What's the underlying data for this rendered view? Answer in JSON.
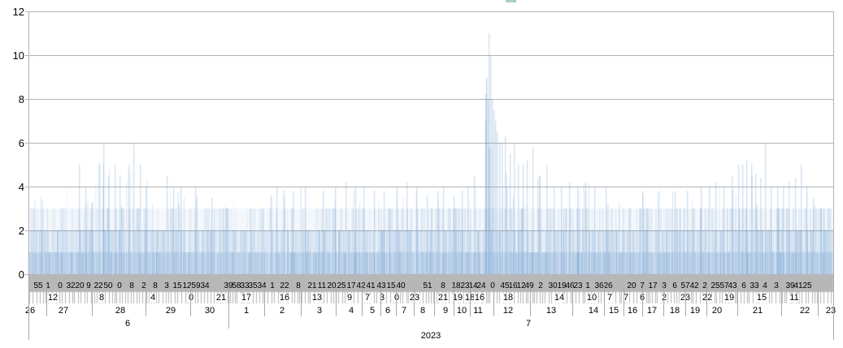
{
  "window": {
    "background": "#ffffff"
  },
  "artifact_mark": {
    "label": "clipped-teal-mark",
    "color": "#a5cfc3",
    "x": 622,
    "width": 13,
    "height": 3
  },
  "chart_data": {
    "type": "bar",
    "title": "",
    "xlabel": "",
    "ylabel": "",
    "legend": null,
    "grid": true,
    "ylim": [
      0,
      12
    ],
    "yticks": [
      0,
      2,
      4,
      6,
      8,
      10,
      12
    ],
    "ytick_labels": [
      "0",
      "2",
      "4",
      "6",
      "8",
      "10",
      "12"
    ],
    "x_axis_type": "datetime-hierarchy",
    "date_range": "2023-06-26 to 2023-07-23",
    "series_description": "Event counts per minute-level timestamp rendered as thousands of thin translucent blue bars; typical values 1-3, occasional 4-6, large spike reaching 11 around 2023-07-11/12",
    "peak": {
      "value": 11,
      "x": 601,
      "at": "2023-07-11"
    },
    "x_hierarchy": {
      "minutes": [
        [
          "55",
          47
        ],
        [
          "1",
          59
        ],
        [
          "0",
          74
        ],
        [
          "32",
          87
        ],
        [
          "20",
          98
        ],
        [
          "9",
          109
        ],
        [
          "22",
          121
        ],
        [
          "50",
          133
        ],
        [
          "0",
          147
        ],
        [
          "8",
          162
        ],
        [
          "2",
          177
        ],
        [
          "8",
          191
        ],
        [
          "3",
          205
        ],
        [
          "15",
          218
        ],
        [
          "12",
          230
        ],
        [
          "59",
          241
        ],
        [
          "34",
          252
        ],
        [
          "39",
          281
        ],
        [
          "58",
          291
        ],
        [
          "33",
          301
        ],
        [
          "35",
          311
        ],
        [
          "34",
          322
        ],
        [
          "1",
          335
        ],
        [
          "22",
          350
        ],
        [
          "8",
          367
        ],
        [
          "21",
          384
        ],
        [
          "11",
          396
        ],
        [
          "20",
          408
        ],
        [
          "25",
          420
        ],
        [
          "17",
          432
        ],
        [
          "42",
          444
        ],
        [
          "41",
          456
        ],
        [
          "43",
          469
        ],
        [
          "15",
          481
        ],
        [
          "40",
          493
        ],
        [
          "51",
          526
        ],
        [
          "8",
          545
        ],
        [
          "18",
          561
        ],
        [
          "23",
          572
        ],
        [
          "14",
          582
        ],
        [
          "24",
          592
        ],
        [
          "0",
          606
        ],
        [
          "45",
          621
        ],
        [
          "16",
          631
        ],
        [
          "12",
          641
        ],
        [
          "49",
          651
        ],
        [
          "2",
          665
        ],
        [
          "30",
          680
        ],
        [
          "19",
          691
        ],
        [
          "46",
          701
        ],
        [
          "23",
          711
        ],
        [
          "1",
          723
        ],
        [
          "36",
          737
        ],
        [
          "26",
          748
        ],
        [
          "20",
          777
        ],
        [
          "7",
          790
        ],
        [
          "17",
          803
        ],
        [
          "3",
          817
        ],
        [
          "6",
          830
        ],
        [
          "57",
          843
        ],
        [
          "42",
          854
        ],
        [
          "2",
          867
        ],
        [
          "25",
          880
        ],
        [
          "57",
          891
        ],
        [
          "43",
          901
        ],
        [
          "6",
          915
        ],
        [
          "33",
          928
        ],
        [
          "4",
          941
        ],
        [
          "3",
          955
        ],
        [
          "39",
          972
        ],
        [
          "41",
          982
        ],
        [
          "25",
          993
        ]
      ],
      "hours": [
        [
          "12",
          65
        ],
        [
          "8",
          125
        ],
        [
          "4",
          188
        ],
        [
          "0",
          235
        ],
        [
          "21",
          272
        ],
        [
          "17",
          303
        ],
        [
          "16",
          350
        ],
        [
          "13",
          390
        ],
        [
          "9",
          430
        ],
        [
          "7",
          452
        ],
        [
          "3",
          470
        ],
        [
          "0",
          488
        ],
        [
          "23",
          510
        ],
        [
          "21",
          545
        ],
        [
          "19",
          563
        ],
        [
          "18",
          578
        ],
        [
          "16",
          590
        ],
        [
          "18",
          625
        ],
        [
          "14",
          688
        ],
        [
          "10",
          728
        ],
        [
          "7",
          750
        ],
        [
          "7",
          770
        ],
        [
          "6",
          790
        ],
        [
          "2",
          817
        ],
        [
          "23",
          843
        ],
        [
          "22",
          870
        ],
        [
          "19",
          897
        ],
        [
          "15",
          937
        ],
        [
          "11",
          977
        ]
      ],
      "days": [
        [
          "26",
          37
        ],
        [
          "27",
          78
        ],
        [
          "28",
          148
        ],
        [
          "29",
          210
        ],
        [
          "30",
          258
        ],
        [
          "1",
          303
        ],
        [
          "2",
          347
        ],
        [
          "3",
          393
        ],
        [
          "4",
          432
        ],
        [
          "5",
          458
        ],
        [
          "6",
          477
        ],
        [
          "7",
          497
        ],
        [
          "8",
          520
        ],
        [
          "9",
          548
        ],
        [
          "10",
          568
        ],
        [
          "11",
          588
        ],
        [
          "12",
          625
        ],
        [
          "13",
          678
        ],
        [
          "14",
          730
        ],
        [
          "15",
          755
        ],
        [
          "16",
          778
        ],
        [
          "17",
          802
        ],
        [
          "18",
          830
        ],
        [
          "19",
          855
        ],
        [
          "20",
          882
        ],
        [
          "21",
          932
        ],
        [
          "22",
          990
        ],
        [
          "23",
          1022
        ]
      ],
      "months": [
        [
          "6",
          157
        ],
        [
          "7",
          650
        ]
      ],
      "year": {
        "label": "2023",
        "x": 530
      }
    },
    "envelope": [
      [
        36,
        3.5
      ],
      [
        80,
        4
      ],
      [
        97,
        5
      ],
      [
        110,
        4
      ],
      [
        122,
        5.5
      ],
      [
        127,
        6
      ],
      [
        140,
        5
      ],
      [
        152,
        4
      ],
      [
        164,
        6
      ],
      [
        175,
        5
      ],
      [
        185,
        4
      ],
      [
        205,
        4.5
      ],
      [
        230,
        4
      ],
      [
        255,
        3.5
      ],
      [
        300,
        3.5
      ],
      [
        340,
        4
      ],
      [
        375,
        4
      ],
      [
        400,
        3.5
      ],
      [
        425,
        4.2
      ],
      [
        450,
        4
      ],
      [
        475,
        3.8
      ],
      [
        500,
        4.2
      ],
      [
        520,
        3.6
      ],
      [
        545,
        4
      ],
      [
        565,
        3.5
      ],
      [
        580,
        4
      ],
      [
        592,
        6
      ],
      [
        597,
        9
      ],
      [
        601,
        11
      ],
      [
        604,
        10
      ],
      [
        608,
        8
      ],
      [
        613,
        7
      ],
      [
        618,
        6.5
      ],
      [
        625,
        6.3
      ],
      [
        632,
        6
      ],
      [
        640,
        5.5
      ],
      [
        648,
        5.3
      ],
      [
        655,
        6
      ],
      [
        665,
        5
      ],
      [
        672,
        5
      ],
      [
        685,
        4.5
      ],
      [
        700,
        4.3
      ],
      [
        720,
        4.2
      ],
      [
        745,
        4
      ],
      [
        765,
        3.6
      ],
      [
        800,
        3.8
      ],
      [
        830,
        3.8
      ],
      [
        860,
        4
      ],
      [
        880,
        4.2
      ],
      [
        905,
        4.8
      ],
      [
        912,
        5.2
      ],
      [
        920,
        5.2
      ],
      [
        930,
        4.8
      ],
      [
        941,
        6
      ],
      [
        955,
        4
      ],
      [
        970,
        4.2
      ],
      [
        985,
        5
      ],
      [
        1000,
        3.5
      ],
      [
        1012,
        2.5
      ],
      [
        1024,
        2
      ]
    ],
    "feature_bars": [
      [
        97,
        5
      ],
      [
        105,
        4
      ],
      [
        122,
        5
      ],
      [
        127,
        6
      ],
      [
        133,
        4.5
      ],
      [
        141,
        5
      ],
      [
        147,
        4.5
      ],
      [
        158,
        5
      ],
      [
        164,
        6
      ],
      [
        172,
        5
      ],
      [
        179,
        4
      ],
      [
        205,
        4.5
      ],
      [
        213,
        4
      ],
      [
        222,
        4
      ],
      [
        240,
        4
      ],
      [
        260,
        3.5
      ],
      [
        340,
        4
      ],
      [
        360,
        3.8
      ],
      [
        375,
        4
      ],
      [
        397,
        3.8
      ],
      [
        412,
        4
      ],
      [
        425,
        4.2
      ],
      [
        437,
        4
      ],
      [
        447,
        4
      ],
      [
        460,
        3.8
      ],
      [
        472,
        3.8
      ],
      [
        488,
        4
      ],
      [
        500,
        4.2
      ],
      [
        512,
        4
      ],
      [
        525,
        3.6
      ],
      [
        538,
        3.8
      ],
      [
        545,
        4
      ],
      [
        558,
        3.6
      ],
      [
        568,
        3.8
      ],
      [
        575,
        4
      ],
      [
        583,
        4.5
      ],
      [
        597,
        7
      ],
      [
        598,
        9
      ],
      [
        600,
        8
      ],
      [
        601,
        11
      ],
      [
        603,
        10
      ],
      [
        605,
        8
      ],
      [
        607,
        7.5
      ],
      [
        609,
        7
      ],
      [
        611,
        6.5
      ],
      [
        614,
        6
      ],
      [
        617,
        6
      ],
      [
        621,
        6.3
      ],
      [
        627,
        5.5
      ],
      [
        632,
        6
      ],
      [
        637,
        5
      ],
      [
        643,
        5
      ],
      [
        648,
        5.2
      ],
      [
        655,
        5.8
      ],
      [
        663,
        4.5
      ],
      [
        672,
        5
      ],
      [
        681,
        4
      ],
      [
        690,
        4
      ],
      [
        700,
        4.2
      ],
      [
        710,
        4
      ],
      [
        720,
        4.2
      ],
      [
        731,
        4
      ],
      [
        745,
        4
      ],
      [
        790,
        3.8
      ],
      [
        810,
        3.8
      ],
      [
        830,
        3.8
      ],
      [
        845,
        3.8
      ],
      [
        862,
        4
      ],
      [
        872,
        4
      ],
      [
        880,
        4.2
      ],
      [
        890,
        4
      ],
      [
        900,
        4.5
      ],
      [
        908,
        5
      ],
      [
        913,
        5
      ],
      [
        918,
        5.2
      ],
      [
        924,
        5
      ],
      [
        929,
        4.6
      ],
      [
        935,
        4.4
      ],
      [
        941,
        6
      ],
      [
        948,
        4
      ],
      [
        956,
        4
      ],
      [
        963,
        4
      ],
      [
        970,
        4.2
      ],
      [
        978,
        4.4
      ],
      [
        985,
        5
      ],
      [
        992,
        4
      ],
      [
        1000,
        3.5
      ]
    ],
    "render": {
      "bar_color": "#729fcf",
      "bar_count": 1300,
      "seed": 7,
      "density_bands": [
        [
          0,
          1,
          0.3
        ],
        [
          1,
          2,
          0.17
        ],
        [
          2,
          3,
          0.08
        ]
      ]
    }
  },
  "axis_style": {
    "grid_color": "#b3b3b3",
    "band_color": "#b7b7b7",
    "comb_color": "#b2b2b2",
    "separator_color": "#a9a9a9",
    "text_color": "#000000",
    "day_boundaries": [
      57,
      113,
      179,
      234,
      325,
      370,
      413,
      445,
      468,
      487,
      509,
      534,
      558,
      578,
      607,
      652,
      704,
      743,
      767,
      790,
      816,
      843,
      869,
      907,
      961,
      1006
    ],
    "month_boundary": 281,
    "outer_boundaries": [
      35,
      1025
    ]
  }
}
